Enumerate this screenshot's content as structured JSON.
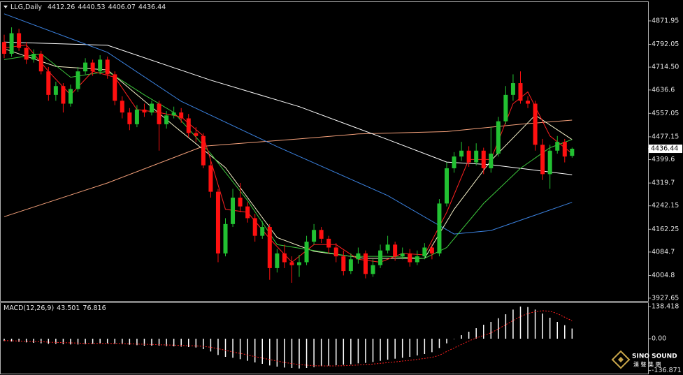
{
  "chart_data": [
    {
      "type": "candlestick",
      "title": "LLG,Daily",
      "categories": [
        null,
        null,
        null,
        null,
        null,
        null,
        null,
        null,
        null,
        null,
        null,
        null,
        null,
        null,
        null,
        null,
        null,
        null,
        null,
        null,
        null,
        null,
        null,
        null,
        null,
        null,
        null,
        null,
        null,
        null,
        null,
        null,
        null,
        null,
        null,
        null,
        null,
        null,
        null,
        null,
        null,
        null,
        null,
        null,
        null,
        null,
        null,
        null,
        null,
        null,
        null,
        null,
        null,
        null,
        null,
        null,
        null,
        null,
        null,
        null,
        null,
        null,
        null,
        null,
        null,
        null,
        null,
        null,
        null,
        null,
        null,
        null,
        null,
        null,
        null,
        null,
        null,
        null
      ],
      "open": [
        4800,
        4760,
        4830,
        4780,
        4740,
        4760,
        4700,
        4620,
        4650,
        4590,
        4640,
        4700,
        4730,
        4700,
        4740,
        4690,
        4600,
        4560,
        4520,
        4570,
        4560,
        4590,
        4520,
        4550,
        4560,
        4540,
        4490,
        4480,
        4380,
        4290,
        4080,
        4180,
        4270,
        4240,
        4200,
        4140,
        4170,
        4030,
        4080,
        4050,
        4040,
        4050,
        4120,
        4160,
        4130,
        4100,
        4070,
        4020,
        4060,
        4080,
        4010,
        4040,
        4090,
        4110,
        4070,
        4080,
        4050,
        4070,
        4100,
        4080,
        4250,
        4370,
        4410,
        4430,
        4390,
        4430,
        4370,
        4420,
        4530,
        4620,
        4660,
        4600,
        4590,
        4450,
        4350,
        4430,
        4460,
        4412.26
      ],
      "high": [
        4825,
        4850,
        4845,
        4800,
        4775,
        4770,
        4715,
        4665,
        4660,
        4655,
        4715,
        4745,
        4740,
        4755,
        4750,
        4700,
        4615,
        4575,
        4585,
        4590,
        4600,
        4600,
        4565,
        4580,
        4575,
        4555,
        4510,
        4490,
        4395,
        4300,
        4200,
        4300,
        4320,
        4255,
        4215,
        4190,
        4180,
        4095,
        4110,
        4070,
        4075,
        4140,
        4180,
        4170,
        4140,
        4115,
        4090,
        4080,
        4100,
        4090,
        4060,
        4110,
        4140,
        4120,
        4100,
        4095,
        4090,
        4115,
        4110,
        4265,
        4390,
        4425,
        4460,
        4445,
        4455,
        4440,
        4510,
        4545,
        4650,
        4690,
        4700,
        4615,
        4600,
        4470,
        4450,
        4480,
        4470,
        4440.53
      ],
      "low": [
        4745,
        4750,
        4770,
        4725,
        4730,
        4690,
        4600,
        4600,
        4560,
        4580,
        4630,
        4690,
        4685,
        4690,
        4675,
        4585,
        4540,
        4500,
        4510,
        4545,
        4550,
        4430,
        4505,
        4540,
        4525,
        4475,
        4460,
        4370,
        4270,
        4050,
        4070,
        4170,
        4220,
        4185,
        4120,
        4130,
        3990,
        4015,
        4030,
        3980,
        4000,
        4040,
        4110,
        4115,
        4080,
        4050,
        4005,
        4010,
        4045,
        3995,
        4000,
        4030,
        4080,
        4055,
        4060,
        4035,
        4040,
        4060,
        4060,
        4070,
        4240,
        4355,
        4395,
        4375,
        4380,
        4350,
        4355,
        4410,
        4520,
        4600,
        4590,
        4575,
        4430,
        4330,
        4300,
        4420,
        4390,
        4406.07
      ],
      "close": [
        4760,
        4830,
        4780,
        4740,
        4760,
        4700,
        4620,
        4650,
        4590,
        4640,
        4700,
        4730,
        4700,
        4740,
        4690,
        4600,
        4560,
        4520,
        4570,
        4560,
        4590,
        4520,
        4550,
        4560,
        4540,
        4490,
        4480,
        4380,
        4290,
        4080,
        4180,
        4270,
        4240,
        4200,
        4140,
        4170,
        4030,
        4080,
        4050,
        4040,
        4050,
        4120,
        4160,
        4130,
        4100,
        4070,
        4020,
        4060,
        4080,
        4010,
        4040,
        4090,
        4110,
        4070,
        4080,
        4050,
        4070,
        4100,
        4080,
        4250,
        4370,
        4410,
        4430,
        4390,
        4430,
        4370,
        4420,
        4530,
        4620,
        4660,
        4600,
        4590,
        4450,
        4350,
        4430,
        4460,
        4410,
        4436.44
      ],
      "up_color": "#22c132",
      "down_color": "#ff1010",
      "series": [
        {
          "color": "#f4a07a",
          "x": [
            0,
            14,
            27,
            40,
            48,
            60,
            70,
            77
          ],
          "values": [
            4205,
            4320,
            4445,
            4470,
            4487,
            4495,
            4520,
            4534
          ]
        },
        {
          "color": "#ffffff",
          "x": [
            0,
            14,
            28,
            40,
            52,
            60,
            66,
            77
          ],
          "values": [
            4800,
            4789,
            4670,
            4580,
            4468,
            4391,
            4382,
            4348
          ]
        },
        {
          "color": "#3b82e0",
          "x": [
            0,
            14,
            24,
            37,
            52,
            61,
            66,
            77
          ],
          "values": [
            4896,
            4765,
            4598,
            4444,
            4277,
            4146,
            4158,
            4254
          ]
        },
        {
          "color": "#f5f0c8",
          "x": [
            0,
            7,
            14,
            23,
            30,
            37,
            42,
            49,
            57,
            61,
            66,
            72,
            77
          ],
          "values": [
            4777,
            4717,
            4705,
            4515,
            4372,
            4134,
            4087,
            4063,
            4063,
            4230,
            4396,
            4551,
            4468
          ]
        },
        {
          "color": "#3cc83c",
          "x": [
            0,
            5,
            9,
            14,
            19,
            23,
            28,
            33,
            37,
            42,
            47,
            52,
            57,
            60,
            65,
            70,
            74,
            77
          ],
          "values": [
            4740,
            4760,
            4680,
            4700,
            4620,
            4560,
            4420,
            4260,
            4110,
            4090,
            4070,
            4070,
            4063,
            4100,
            4250,
            4370,
            4440,
            4468
          ]
        },
        {
          "color": "#ff2020",
          "x": [
            0,
            3,
            6,
            9,
            12,
            15,
            18,
            21,
            24,
            27,
            30,
            33,
            36,
            39,
            42,
            45,
            48,
            51,
            54,
            57,
            60,
            63,
            66,
            69,
            71,
            74,
            77
          ],
          "values": [
            4780,
            4790,
            4700,
            4620,
            4700,
            4680,
            4570,
            4560,
            4545,
            4480,
            4230,
            4220,
            4130,
            4050,
            4110,
            4110,
            4060,
            4050,
            4080,
            4075,
            4220,
            4400,
            4400,
            4590,
            4630,
            4480,
            4420
          ]
        }
      ],
      "xlim": [
        -0.57,
        87.3
      ],
      "ylim": [
        3918,
        4936
      ],
      "yticks": [
        4871.95,
        4792.05,
        {
          "value": 4714.5,
          "label": "4714.50"
        },
        4636.6,
        4557.05,
        4477.15,
        4399.6,
        4319.7,
        4242.15,
        4162.25,
        4084.7,
        4004.8,
        3927.65
      ]
    },
    {
      "type": "macd",
      "title": "MACD(12,26,9)",
      "histogram": [
        -10,
        -12,
        -14,
        -16,
        -18,
        -20,
        -22,
        -22,
        -24,
        -25,
        -25,
        -24,
        -22,
        -20,
        -20,
        -22,
        -24,
        -26,
        -28,
        -30,
        -30,
        -30,
        -32,
        -33,
        -34,
        -36,
        -38,
        -45,
        -55,
        -70,
        -78,
        -82,
        -88,
        -95,
        -102,
        -108,
        -115,
        -120,
        -124,
        -126,
        -128,
        -126,
        -122,
        -118,
        -116,
        -114,
        -112,
        -110,
        -106,
        -104,
        -100,
        -95,
        -90,
        -86,
        -82,
        -78,
        -72,
        -66,
        -58,
        -40,
        -20,
        0,
        15,
        30,
        45,
        60,
        72,
        88,
        105,
        125,
        138,
        136,
        125,
        108,
        90,
        72,
        58,
        43.501
      ],
      "signal": [
        -8,
        -9,
        -10,
        -11,
        -12,
        -13,
        -15,
        -16,
        -17,
        -18,
        -19,
        -20,
        -20,
        -20,
        -20,
        -20,
        -21,
        -22,
        -23,
        -24,
        -25,
        -26,
        -27,
        -28,
        -29,
        -30,
        -31,
        -33,
        -37,
        -43,
        -50,
        -57,
        -63,
        -70,
        -77,
        -83,
        -90,
        -96,
        -102,
        -107,
        -111,
        -114,
        -116,
        -117,
        -117,
        -117,
        -116,
        -115,
        -113,
        -111,
        -109,
        -106,
        -103,
        -100,
        -96,
        -93,
        -89,
        -85,
        -80,
        -72,
        -55,
        -40,
        -25,
        -10,
        3,
        14,
        25,
        42,
        60,
        78,
        95,
        108,
        116,
        120,
        118,
        108,
        92,
        76.816
      ],
      "histogram_color": "#ffffff",
      "signal_color": "#ff2020",
      "ylim": [
        -150,
        153
      ],
      "yticks": [
        138.418,
        {
          "value": 0,
          "label": "0.00"
        },
        -136.871
      ]
    }
  ],
  "watermark": {
    "brand": "SINO SOUND",
    "brand_cn": "漢 聲 集 團"
  }
}
